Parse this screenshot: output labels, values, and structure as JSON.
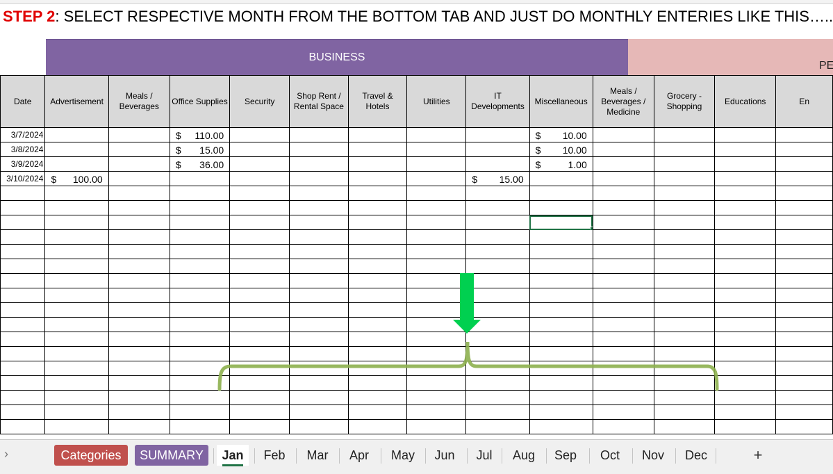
{
  "instruction": {
    "step": "STEP 2",
    "text": ": SELECT RESPECTIVE MONTH FROM THE BOTTOM TAB AND JUST DO MONTHLY ENTERIES LIKE THIS….."
  },
  "bands": {
    "business": "BUSINESS",
    "personal": "PE"
  },
  "headers": [
    "Date",
    "Advertisement",
    "Meals / Beverages",
    "Office Supplies",
    "Security",
    "Shop Rent / Rental Space",
    "Travel & Hotels",
    "Utilities",
    "IT Developments",
    "Miscellaneous",
    "Meals / Beverages / Medicine",
    "Grocery - Shopping",
    "Educations",
    "En"
  ],
  "currency_symbol": "$",
  "rows": [
    {
      "date": "3/7/2024",
      "advertisement": "",
      "office_supplies": "110.00",
      "it": "",
      "misc": "10.00"
    },
    {
      "date": "3/8/2024",
      "advertisement": "",
      "office_supplies": "15.00",
      "it": "",
      "misc": "10.00"
    },
    {
      "date": "3/9/2024",
      "advertisement": "",
      "office_supplies": "36.00",
      "it": "",
      "misc": "1.00"
    },
    {
      "date": "3/10/2024",
      "advertisement": "100.00",
      "office_supplies": "",
      "it": "15.00",
      "misc": ""
    }
  ],
  "tabs": {
    "nav_arrow": "›",
    "colored": [
      {
        "label": "Categories",
        "color": "#c0504d"
      },
      {
        "label": "SUMMARY",
        "color": "#8064a2"
      }
    ],
    "active": "Jan",
    "months": [
      "Feb",
      "Mar",
      "Apr",
      "May",
      "Jun",
      "Jul",
      "Aug",
      "Sep",
      "Oct",
      "Nov",
      "Dec"
    ],
    "add": "+"
  },
  "colors": {
    "arrow": "#00d050",
    "brace": "#8db04e",
    "selection": "#217346"
  }
}
